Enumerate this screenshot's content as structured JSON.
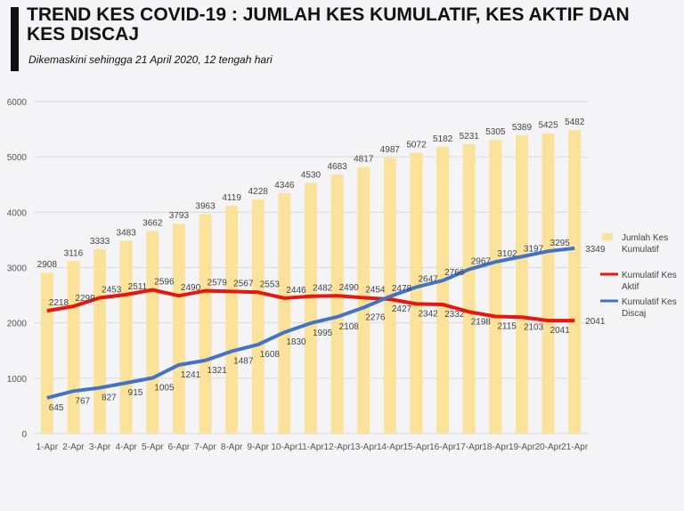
{
  "header": {
    "title": "TREND KES COVID-19 : JUMLAH KES KUMULATIF, KES AKTIF DAN KES DISCAJ",
    "subtitle": "Dikemaskini sehingga 21 April 2020, 12 tengah hari"
  },
  "chart_data": {
    "type": "bar+line",
    "categories": [
      "1-Apr",
      "2-Apr",
      "3-Apr",
      "4-Apr",
      "5-Apr",
      "6-Apr",
      "7-Apr",
      "8-Apr",
      "9-Apr",
      "10-Apr",
      "11-Apr",
      "12-Apr",
      "13-Apr",
      "14-Apr",
      "15-Apr",
      "16-Apr",
      "17-Apr",
      "18-Apr",
      "19-Apr",
      "20-Apr",
      "21-Apr"
    ],
    "ylim": [
      0,
      6000
    ],
    "yticks": [
      0,
      1000,
      2000,
      3000,
      4000,
      5000,
      6000
    ],
    "grid": true,
    "legend_position": "right",
    "series": [
      {
        "name": "Jumlah Kes Kumulatif",
        "type": "bar",
        "color": "#fbe29b",
        "values": [
          2908,
          3116,
          3333,
          3483,
          3662,
          3793,
          3963,
          4119,
          4228,
          4346,
          4530,
          4683,
          4817,
          4987,
          5072,
          5182,
          5231,
          5305,
          5389,
          5425,
          5482
        ]
      },
      {
        "name": "Kumulatif Kes Aktif",
        "type": "line",
        "color": "#e8160c",
        "values": [
          2218,
          2299,
          2453,
          2511,
          2596,
          2490,
          2579,
          2567,
          2553,
          2446,
          2482,
          2490,
          2454,
          2427,
          2342,
          2332,
          2198,
          2115,
          2103,
          2041,
          2041
        ]
      },
      {
        "name": "Kumulatif Kes Discaj",
        "type": "line",
        "color": "#4472c4",
        "values": [
          645,
          767,
          827,
          915,
          1005,
          1241,
          1321,
          1487,
          1608,
          1830,
          1995,
          2108,
          2276,
          2478,
          2647,
          2766,
          2967,
          3102,
          3197,
          3295,
          3349
        ]
      }
    ]
  }
}
